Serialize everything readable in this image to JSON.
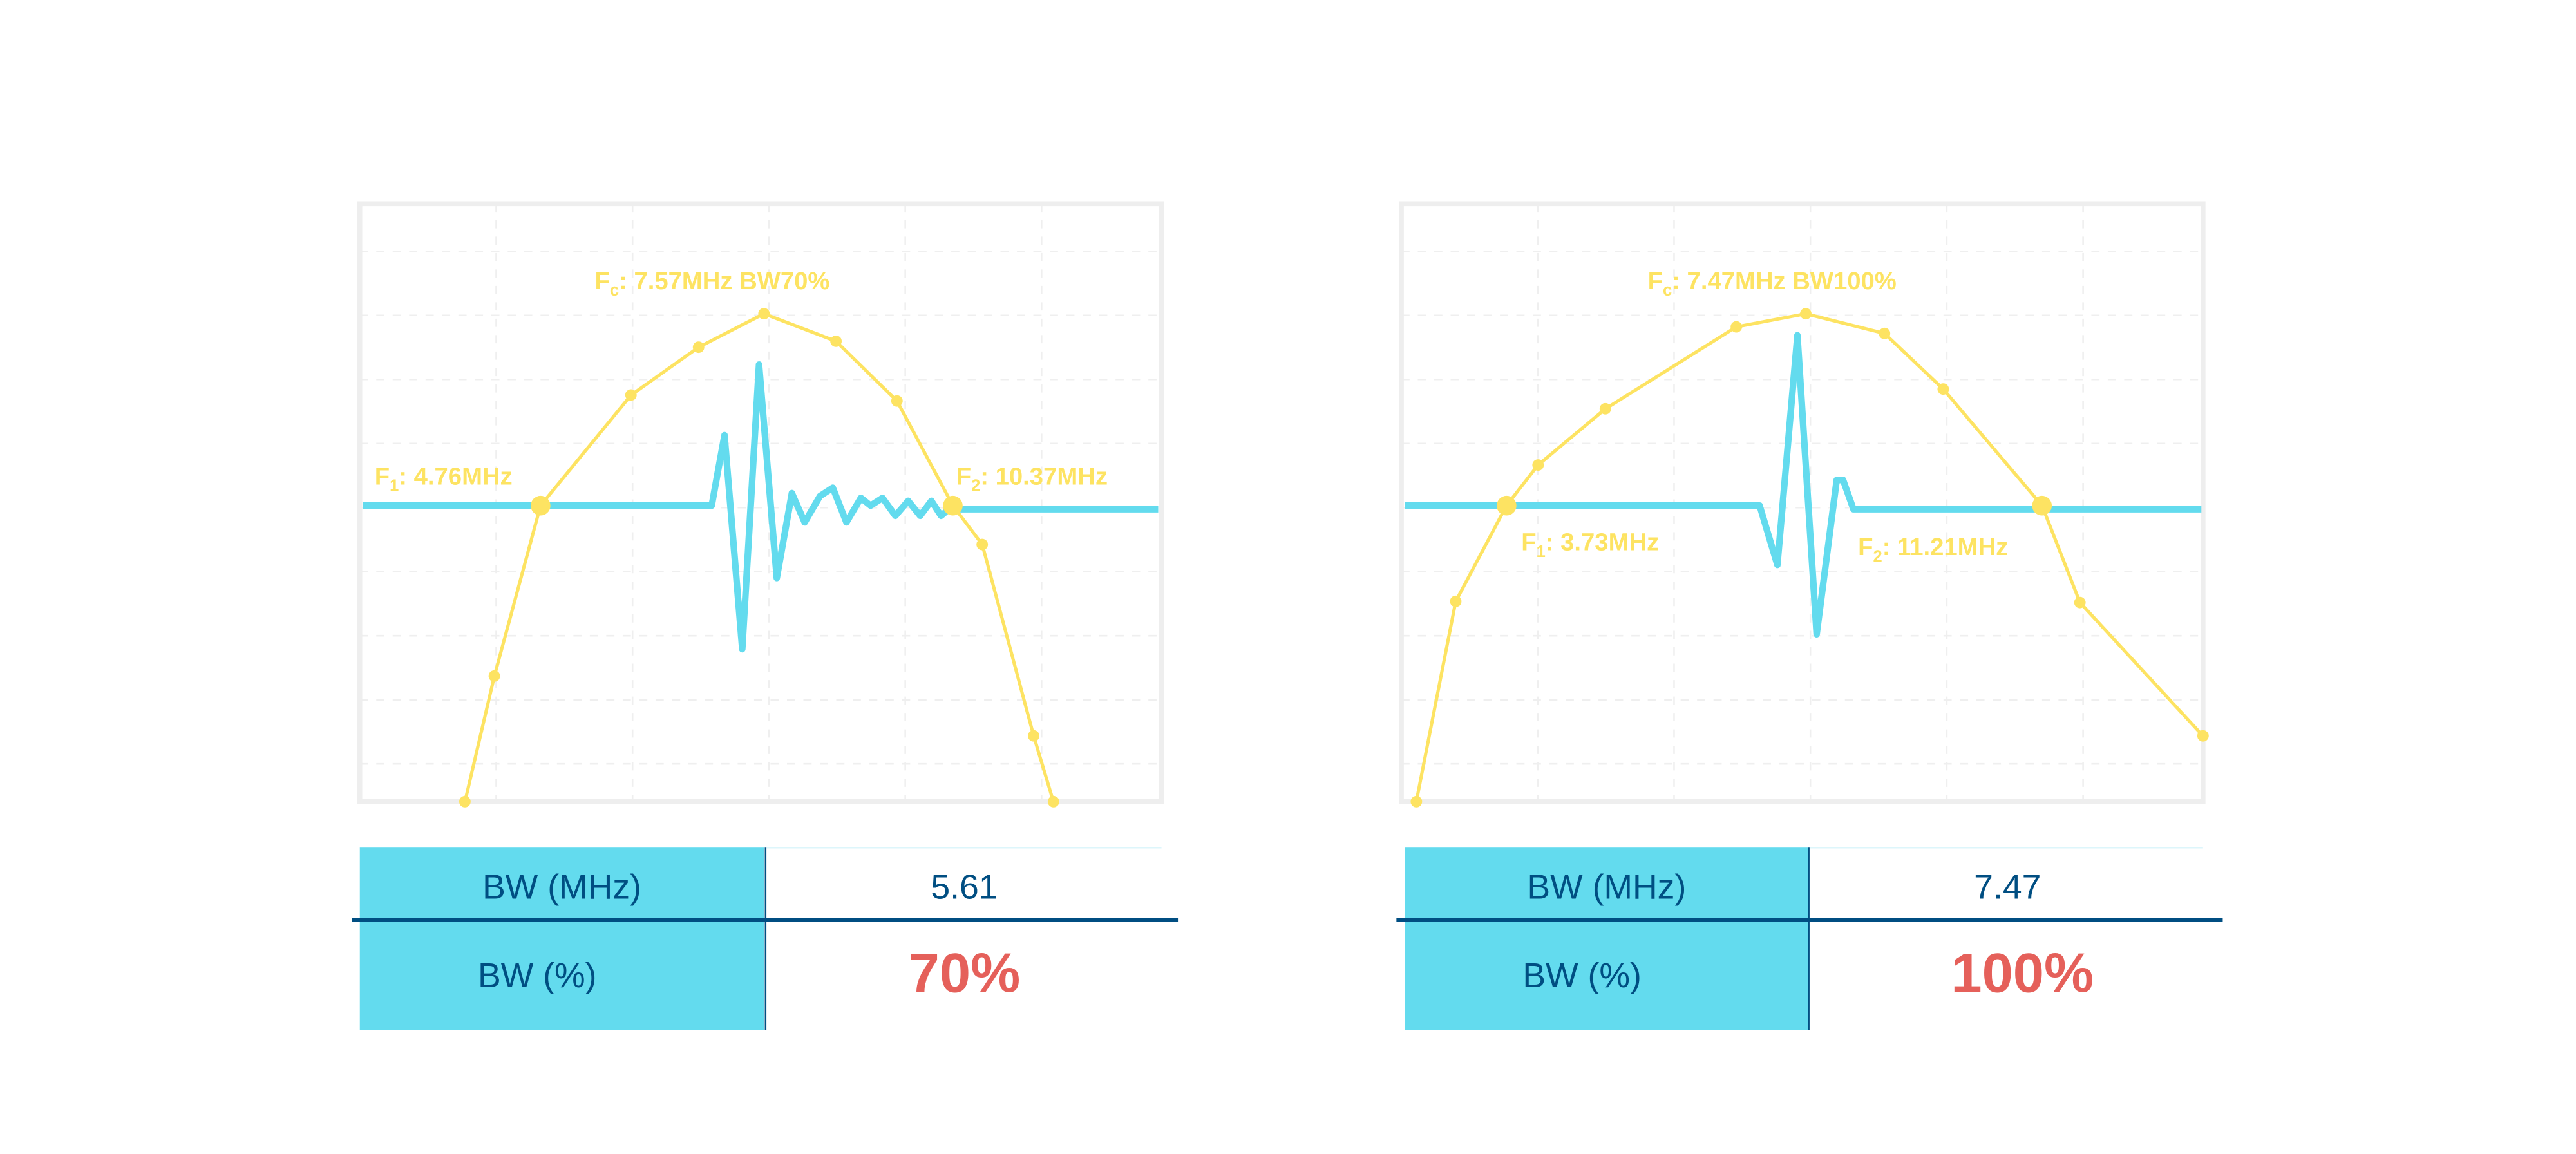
{
  "colors": {
    "spectrum": "#FDE362",
    "waveform": "#63DBEE",
    "header_cell": "#63DBEE",
    "table_text": "#004E82",
    "highlight": "#E5605A",
    "frame": "#EEEEEE",
    "grid": "#EFEFEF"
  },
  "chart_data": [
    {
      "type": "line",
      "grid": true,
      "xlim": [
        2.3,
        13.21
      ],
      "ylim": [
        0,
        1
      ],
      "labels": {
        "center": {
          "name": "F",
          "sub": "c",
          "value": ": 7.57MHz BW70%"
        },
        "f1": {
          "name": "F",
          "sub": "1",
          "value": ": 4.76MHz"
        },
        "f2": {
          "name": "F",
          "sub": "2",
          "value": ": 10.37MHz"
        }
      },
      "markers": {
        "f1_mhz": 4.76,
        "f2_mhz": 10.37,
        "fc_mhz": 7.57
      },
      "spectrum": {
        "x": [
          3.73,
          4.13,
          4.76,
          5.99,
          6.91,
          7.8,
          8.78,
          9.61,
          10.37,
          10.77,
          11.47,
          11.74
        ],
        "y": [
          0,
          0.21,
          0.495,
          0.68,
          0.76,
          0.816,
          0.77,
          0.67,
          0.495,
          0.43,
          0.11,
          0
        ]
      },
      "waveform": {
        "t": [
          0.4,
          43.9,
          45.5,
          47.7,
          49.8,
          52.0,
          53.9,
          55.5,
          57.4,
          59.0,
          60.7,
          62.5,
          63.7,
          65.2,
          66.8,
          68.4,
          69.9,
          71.3,
          72.5,
          74.0,
          75.0,
          99.6
        ],
        "y": [
          0.495,
          0.495,
          0.613,
          0.255,
          0.731,
          0.374,
          0.516,
          0.467,
          0.511,
          0.525,
          0.467,
          0.508,
          0.495,
          0.508,
          0.478,
          0.503,
          0.478,
          0.503,
          0.478,
          0.495,
          0.489,
          0.489
        ]
      },
      "table": {
        "rows": [
          {
            "label": "BW (MHz)",
            "value": "5.61"
          },
          {
            "label": "BW (%)",
            "value": "70%"
          }
        ]
      }
    },
    {
      "type": "line",
      "grid": true,
      "xlim": [
        2.26,
        13.46
      ],
      "ylim": [
        0,
        1
      ],
      "labels": {
        "center": {
          "name": "F",
          "sub": "c",
          "value": ": 7.47MHz BW100%"
        },
        "f1": {
          "name": "F",
          "sub": "1",
          "value": ": 3.73MHz"
        },
        "f2": {
          "name": "F",
          "sub": "2",
          "value": ": 11.21MHz"
        }
      },
      "markers": {
        "f1_mhz": 3.73,
        "f2_mhz": 11.21,
        "fc_mhz": 7.47
      },
      "spectrum": {
        "x": [
          2.47,
          3.02,
          3.73,
          4.17,
          5.11,
          6.94,
          7.91,
          9.01,
          9.83,
          11.21,
          11.74,
          13.46
        ],
        "y": [
          0,
          0.335,
          0.495,
          0.563,
          0.657,
          0.794,
          0.816,
          0.783,
          0.69,
          0.495,
          0.333,
          0.11
        ]
      },
      "waveform": {
        "t": [
          0.4,
          44.7,
          46.9,
          49.4,
          51.8,
          54.3,
          55.1,
          56.4,
          99.8
        ],
        "y": [
          0.495,
          0.495,
          0.396,
          0.78,
          0.28,
          0.538,
          0.538,
          0.489,
          0.489
        ]
      },
      "table": {
        "rows": [
          {
            "label": "BW (MHz)",
            "value": "7.47"
          },
          {
            "label": "BW (%)",
            "value": "100%"
          }
        ]
      }
    }
  ]
}
